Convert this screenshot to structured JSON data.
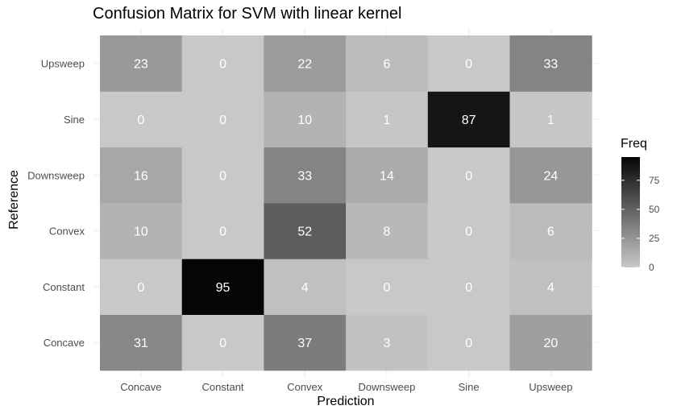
{
  "chart_data": {
    "type": "heatmap",
    "title": "Confusion Matrix for SVM with linear kernel",
    "xlabel": "Prediction",
    "ylabel": "Reference",
    "x_categories": [
      "Concave",
      "Constant",
      "Convex",
      "Downsweep",
      "Sine",
      "Upsweep"
    ],
    "y_categories": [
      "Concave",
      "Constant",
      "Convex",
      "Downsweep",
      "Sine",
      "Upsweep"
    ],
    "values": [
      [
        31,
        0,
        37,
        3,
        0,
        20
      ],
      [
        0,
        95,
        4,
        0,
        0,
        4
      ],
      [
        10,
        0,
        52,
        8,
        0,
        6
      ],
      [
        16,
        0,
        33,
        14,
        0,
        24
      ],
      [
        0,
        0,
        10,
        1,
        87,
        1
      ],
      [
        23,
        0,
        22,
        6,
        0,
        33
      ]
    ],
    "color_scale": {
      "low": "#c8c8c8",
      "high": "#050505",
      "min": 0,
      "max": 95
    },
    "legend": {
      "title": "Freq",
      "ticks": [
        0,
        25,
        50,
        75
      ],
      "placement": "right"
    },
    "cell_text_color": "#ffffff",
    "grid": true
  }
}
